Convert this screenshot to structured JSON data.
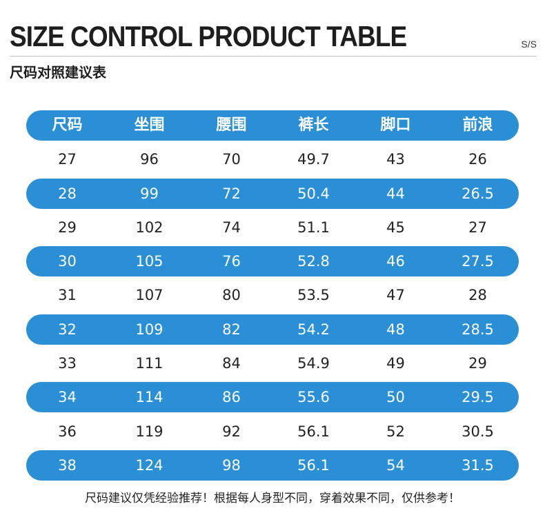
{
  "header": {
    "title": "SIZE CONTROL PRODUCT TABLE",
    "season": "S/S",
    "subtitle": "尺码对照建议表"
  },
  "table": {
    "columns": [
      "尺码",
      "坐围",
      "腰围",
      "裤长",
      "脚口",
      "前浪"
    ],
    "rows": [
      [
        "27",
        "96",
        "70",
        "49.7",
        "43",
        "26"
      ],
      [
        "28",
        "99",
        "72",
        "50.4",
        "44",
        "26.5"
      ],
      [
        "29",
        "102",
        "74",
        "51.1",
        "45",
        "27"
      ],
      [
        "30",
        "105",
        "76",
        "52.8",
        "46",
        "27.5"
      ],
      [
        "31",
        "107",
        "80",
        "53.5",
        "47",
        "28"
      ],
      [
        "32",
        "109",
        "82",
        "54.2",
        "48",
        "28.5"
      ],
      [
        "33",
        "111",
        "84",
        "54.9",
        "49",
        "29"
      ],
      [
        "34",
        "114",
        "86",
        "55.6",
        "50",
        "29.5"
      ],
      [
        "36",
        "119",
        "92",
        "56.1",
        "52",
        "30.5"
      ],
      [
        "38",
        "124",
        "98",
        "56.1",
        "54",
        "31.5"
      ]
    ]
  },
  "footer": {
    "note": "尺码建议仅凭经验推荐！根据每人身型不同，穿着效果不同，仅供参考！"
  },
  "colors": {
    "accent": "#2a8fd4",
    "text": "#222222"
  }
}
